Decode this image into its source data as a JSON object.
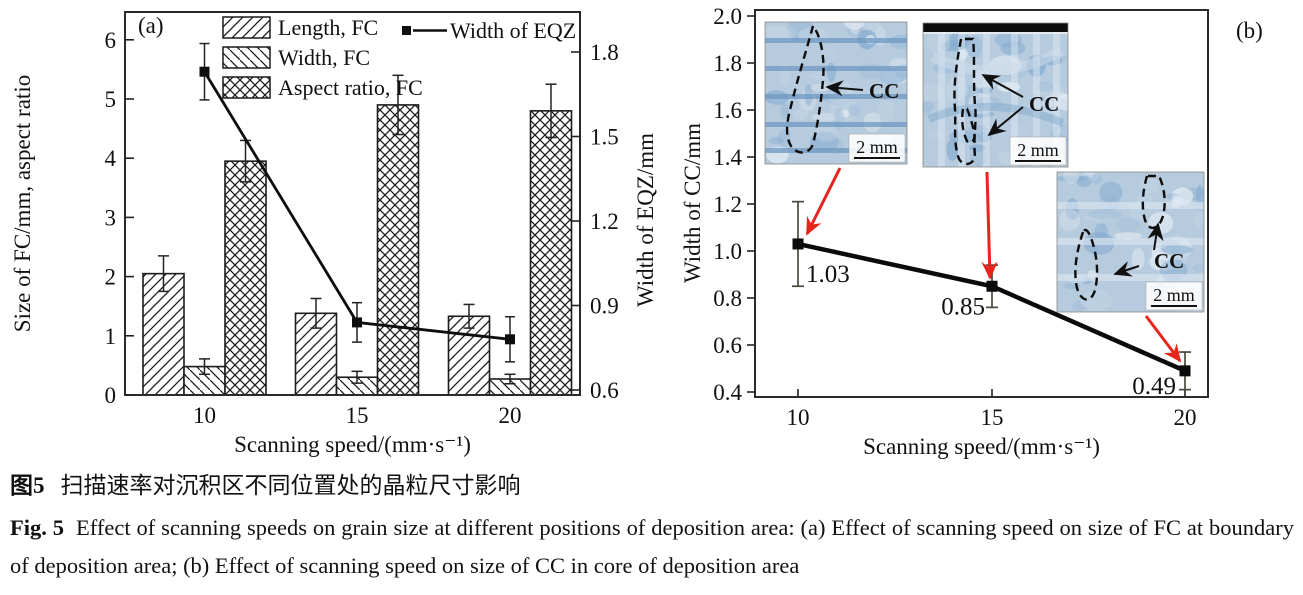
{
  "chart_data": [
    {
      "id": "a",
      "type": "bar",
      "panel_label": "(a)",
      "categories": [
        "10",
        "15",
        "20"
      ],
      "xlabel": "Scanning speed/(mm·s⁻¹)",
      "ylabel_left": "Size of FC/mm, aspect ratio",
      "ylabel_right": "Width of EQZ/mm",
      "ylim_left": [
        0,
        6.47
      ],
      "yticks_left": [
        "0",
        "1",
        "2",
        "3",
        "4",
        "5",
        "6"
      ],
      "ylim_right": [
        0.58,
        1.94
      ],
      "yticks_right": [
        "0.6",
        "0.9",
        "1.2",
        "1.5",
        "1.8"
      ],
      "grid": false,
      "legend_position": "top-inside",
      "bar_series": [
        {
          "name": "Length, FC",
          "hatch": "diag",
          "values": [
            2.05,
            1.38,
            1.33
          ],
          "errors": [
            0.3,
            0.25,
            0.2
          ]
        },
        {
          "name": "Width, FC",
          "hatch": "rdiag",
          "values": [
            0.48,
            0.3,
            0.27
          ],
          "errors": [
            0.13,
            0.1,
            0.08
          ]
        },
        {
          "name": "Aspect ratio, FC",
          "hatch": "cross",
          "values": [
            3.95,
            4.9,
            4.8
          ],
          "errors": [
            0.35,
            0.5,
            0.45
          ]
        }
      ],
      "line_series": {
        "name": "Width of EQZ",
        "axis": "right",
        "values": [
          1.73,
          0.84,
          0.78
        ],
        "errors": [
          0.1,
          0.07,
          0.08
        ]
      }
    },
    {
      "id": "b",
      "type": "line",
      "panel_label": "(b)",
      "x": [
        "10",
        "15",
        "20"
      ],
      "xlabel": "Scanning speed/(mm·s⁻¹)",
      "ylabel": "Width of CC/mm",
      "ylim": [
        0.4,
        2.0
      ],
      "yticks": [
        "0.4",
        "0.6",
        "0.8",
        "1.0",
        "1.2",
        "1.4",
        "1.6",
        "1.8",
        "2.0"
      ],
      "grid": false,
      "series": {
        "name": "Width of CC",
        "values": [
          1.03,
          0.85,
          0.49
        ],
        "errors": [
          0.18,
          0.09,
          0.08
        ]
      },
      "point_labels": [
        "1.03",
        "0.85",
        "0.49"
      ],
      "insets": [
        {
          "cc_label": "CC",
          "scale_label": "2 mm"
        },
        {
          "cc_label": "CC",
          "scale_label": "2 mm"
        },
        {
          "cc_label": "CC",
          "scale_label": "2 mm"
        }
      ],
      "arrow_color": "#e8251d",
      "line_color": "#0b0b0b",
      "errorbar_color": "#4a4a3c"
    }
  ],
  "caption": {
    "zh_label": "图5",
    "zh_text": "扫描速率对沉积区不同位置处的晶粒尺寸影响",
    "en_label": "Fig. 5",
    "en_text": "Effect of scanning speeds on grain size at different positions of deposition area: (a) Effect of scanning speed on size of FC at boundary of deposition area; (b) Effect of scanning speed on size of CC in core of deposition area"
  }
}
